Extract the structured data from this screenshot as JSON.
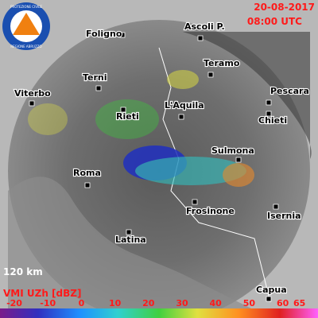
{
  "header": {
    "date": "20-08-2017",
    "time": "08:00 UTC"
  },
  "logo": {
    "top": "PROTEZIONE CIVILE",
    "bottom": "REGIONE ABRUZZO"
  },
  "cities": [
    {
      "label": "Foligno"
    },
    {
      "label": "Ascoli P."
    },
    {
      "label": "Teramo"
    },
    {
      "label": "Terni"
    },
    {
      "label": "Pescara"
    },
    {
      "label": "Viterbo"
    },
    {
      "label": "L'Aquila"
    },
    {
      "label": "Rieti"
    },
    {
      "label": "Chieti"
    },
    {
      "label": "Sulmona"
    },
    {
      "label": "Roma"
    },
    {
      "label": "Frosinone"
    },
    {
      "label": "Isernia"
    },
    {
      "label": "Latina"
    },
    {
      "label": "Capua"
    }
  ],
  "scale": "120 km",
  "legend": {
    "title": "VMI UZh [dBZ]",
    "ticks": [
      -20,
      -10,
      0,
      10,
      20,
      30,
      40,
      50,
      60,
      65
    ]
  }
}
